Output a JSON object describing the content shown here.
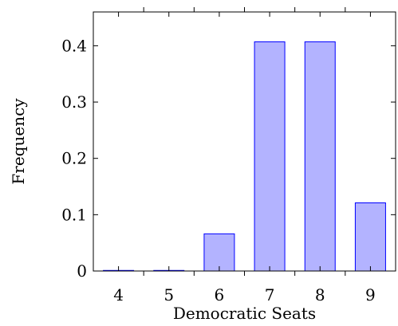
{
  "chart_data": {
    "type": "bar",
    "title": "",
    "xlabel": "Democratic Seats",
    "ylabel": "Frequency",
    "categories": [
      "4",
      "5",
      "6",
      "7",
      "8",
      "9"
    ],
    "values": [
      0.001,
      0.001,
      0.066,
      0.407,
      0.407,
      0.121
    ],
    "ylim": [
      0,
      0.46
    ],
    "xlim": [
      3.5,
      9.5
    ],
    "yticks": [
      0,
      0.1,
      0.2,
      0.3,
      0.4
    ],
    "ytick_labels": [
      "0",
      "0.1",
      "0.2",
      "0.3",
      "0.4"
    ],
    "grid": false,
    "bar_fill": "#b3b3ff",
    "bar_stroke": "#0000ff",
    "axis_color": "#000000"
  }
}
